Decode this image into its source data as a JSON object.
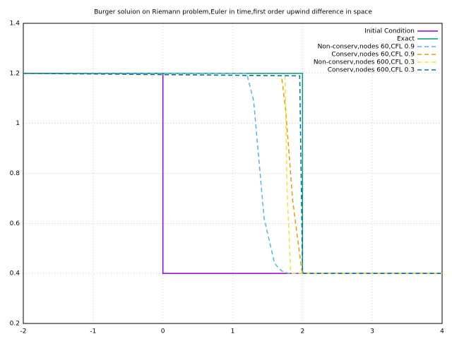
{
  "chart_data": {
    "type": "line",
    "title": "Burger soluion on Riemann problem,Euler in time,first order upwind difference in space",
    "xlim": [
      -2,
      4
    ],
    "ylim": [
      0.2,
      1.4
    ],
    "xticks": [
      -2,
      -1,
      0,
      1,
      2,
      3,
      4
    ],
    "yticks": [
      0.2,
      0.4,
      0.6,
      0.8,
      1,
      1.2,
      1.4
    ],
    "grid": true,
    "legend": "top-right",
    "series": [
      {
        "name": "Initial Condition",
        "color": "#9400d3",
        "dashed": false,
        "x": [
          -2,
          0,
          0,
          4
        ],
        "values": [
          1.2,
          1.2,
          0.4,
          0.4
        ]
      },
      {
        "name": "Exact",
        "color": "#009e73",
        "dashed": false,
        "x": [
          -2,
          2,
          2,
          4
        ],
        "values": [
          1.2,
          1.2,
          0.4,
          0.4
        ]
      },
      {
        "name": "Non-conserv,nodes 60,CFL 0.9",
        "color": "#56b4e9",
        "dashed": true,
        "x": [
          -2,
          1.2,
          1.3,
          1.45,
          1.6,
          1.7,
          1.8,
          4
        ],
        "values": [
          1.2,
          1.2,
          1.09,
          0.62,
          0.44,
          0.41,
          0.4,
          0.4
        ]
      },
      {
        "name": "Conserv,nodes 60,CFL 0.9",
        "color": "#e69f00",
        "dashed": true,
        "x": [
          -2,
          1.7,
          1.76,
          1.86,
          1.99,
          2.04,
          4
        ],
        "values": [
          1.2,
          1.19,
          1.05,
          0.69,
          0.41,
          0.4,
          0.4
        ]
      },
      {
        "name": "Non-conserv,nodes 600,CFL 0.3",
        "color": "#f0e442",
        "dashed": true,
        "x": [
          -2,
          1.75,
          1.78,
          1.83,
          1.85,
          4
        ],
        "values": [
          1.2,
          1.19,
          0.73,
          0.41,
          0.4,
          0.4
        ]
      },
      {
        "name": "Conserv,nodes 600,CFL 0.3",
        "color": "#0072b2",
        "dashed": true,
        "x": [
          -2,
          1.96,
          2.0,
          2.02,
          4
        ],
        "values": [
          1.2,
          1.19,
          0.41,
          0.4,
          0.4
        ]
      }
    ]
  }
}
